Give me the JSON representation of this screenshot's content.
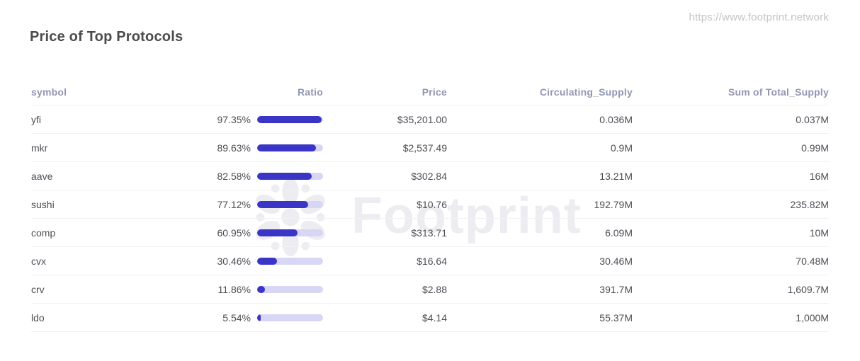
{
  "page": {
    "site_url": "https://www.footprint.network",
    "title": "Price of Top Protocols",
    "watermark_text": "Footprint"
  },
  "colors": {
    "bar_fill": "#3b35c6",
    "bar_track": "#d7d6f4",
    "header_text": "#9197b3",
    "watermark": "#ededf1"
  },
  "table": {
    "columns": [
      "symbol",
      "Ratio",
      "Price",
      "Circulating_Supply",
      "Sum of Total_Supply"
    ],
    "rows": [
      {
        "symbol": "yfi",
        "ratio_pct": 97.35,
        "ratio_label": "97.35%",
        "price": "$35,201.00",
        "circulating_supply": "0.036M",
        "total_supply": "0.037M"
      },
      {
        "symbol": "mkr",
        "ratio_pct": 89.63,
        "ratio_label": "89.63%",
        "price": "$2,537.49",
        "circulating_supply": "0.9M",
        "total_supply": "0.99M"
      },
      {
        "symbol": "aave",
        "ratio_pct": 82.58,
        "ratio_label": "82.58%",
        "price": "$302.84",
        "circulating_supply": "13.21M",
        "total_supply": "16M"
      },
      {
        "symbol": "sushi",
        "ratio_pct": 77.12,
        "ratio_label": "77.12%",
        "price": "$10.76",
        "circulating_supply": "192.79M",
        "total_supply": "235.82M"
      },
      {
        "symbol": "comp",
        "ratio_pct": 60.95,
        "ratio_label": "60.95%",
        "price": "$313.71",
        "circulating_supply": "6.09M",
        "total_supply": "10M"
      },
      {
        "symbol": "cvx",
        "ratio_pct": 30.46,
        "ratio_label": "30.46%",
        "price": "$16.64",
        "circulating_supply": "30.46M",
        "total_supply": "70.48M"
      },
      {
        "symbol": "crv",
        "ratio_pct": 11.86,
        "ratio_label": "11.86%",
        "price": "$2.88",
        "circulating_supply": "391.7M",
        "total_supply": "1,609.7M"
      },
      {
        "symbol": "ldo",
        "ratio_pct": 5.54,
        "ratio_label": "5.54%",
        "price": "$4.14",
        "circulating_supply": "55.37M",
        "total_supply": "1,000M"
      }
    ]
  },
  "chart_data": {
    "type": "table",
    "title": "Price of Top Protocols",
    "columns": [
      "symbol",
      "Ratio",
      "Price",
      "Circulating_Supply",
      "Sum of Total_Supply"
    ],
    "ratio_bar_range": [
      0,
      100
    ],
    "rows": [
      [
        "yfi",
        97.35,
        35201.0,
        "0.036M",
        "0.037M"
      ],
      [
        "mkr",
        89.63,
        2537.49,
        "0.9M",
        "0.99M"
      ],
      [
        "aave",
        82.58,
        302.84,
        "13.21M",
        "16M"
      ],
      [
        "sushi",
        77.12,
        10.76,
        "192.79M",
        "235.82M"
      ],
      [
        "comp",
        60.95,
        313.71,
        "6.09M",
        "10M"
      ],
      [
        "cvx",
        30.46,
        16.64,
        "30.46M",
        "70.48M"
      ],
      [
        "crv",
        11.86,
        2.88,
        "391.7M",
        "1,609.7M"
      ],
      [
        "ldo",
        5.54,
        4.14,
        "55.37M",
        "1,000M"
      ]
    ]
  }
}
